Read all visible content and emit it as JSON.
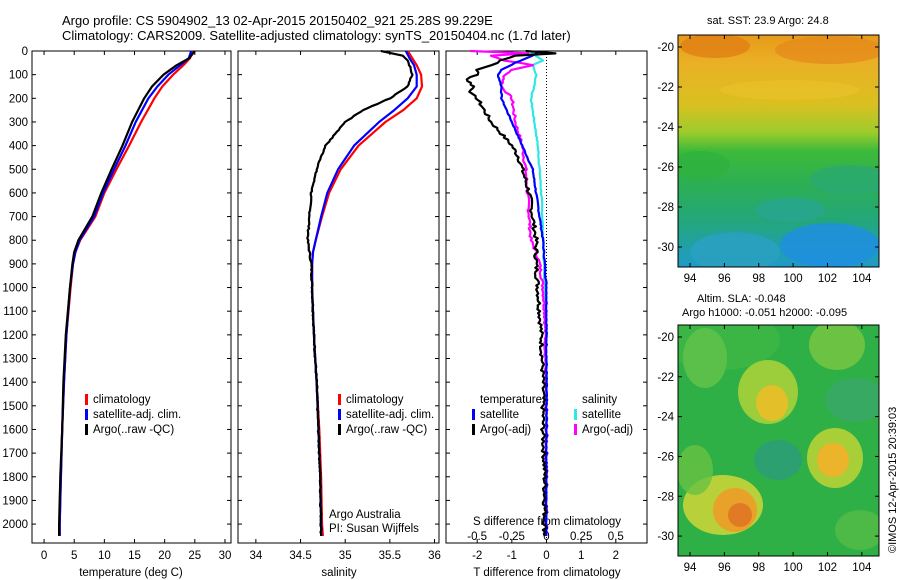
{
  "header": {
    "title_line1": "Argo profile: CS 5904902_13 02-Apr-2015 20150402_921 25.28S 99.229E",
    "title_line2": "Climatology: CARS2009. Satellite-adjusted climatology: synTS_20150404.nc (1.7d later)"
  },
  "colors": {
    "climatology": "#ff0000",
    "satellite": "#0000ff",
    "argo": "#000000",
    "sal_satellite": "#33e6e6",
    "sal_argo": "#ff00ff"
  },
  "chart_data": [
    {
      "type": "line",
      "id": "temperature",
      "xlabel": "temperature (deg C)",
      "ylabel": "",
      "xlim": [
        -2,
        31
      ],
      "ylim": [
        2080,
        0
      ],
      "xticks": [
        0,
        5,
        10,
        15,
        20,
        25,
        30
      ],
      "yticks": [
        0,
        100,
        200,
        300,
        400,
        500,
        600,
        700,
        800,
        900,
        1000,
        1100,
        1200,
        1300,
        1400,
        1500,
        1600,
        1700,
        1800,
        1900,
        2000
      ],
      "legend": [
        "climatology",
        "satellite-adj. clim.",
        "Argo(..raw -QC)"
      ],
      "series": [
        {
          "name": "climatology",
          "depth": [
            0,
            30,
            60,
            100,
            150,
            200,
            300,
            400,
            500,
            600,
            700,
            800,
            850,
            900,
            1000,
            1200,
            1400,
            1600,
            1800,
            2000,
            2050
          ],
          "values": [
            24.6,
            24.2,
            23.1,
            21.4,
            19.6,
            18.3,
            16.1,
            14.1,
            12.0,
            10.0,
            8.5,
            6.0,
            5.2,
            4.8,
            4.4,
            3.7,
            3.3,
            3.0,
            2.8,
            2.6,
            2.6
          ]
        },
        {
          "name": "satellite-adj. clim.",
          "depth": [
            0,
            30,
            60,
            100,
            150,
            200,
            300,
            400,
            500,
            600,
            700,
            800,
            850,
            900,
            1000,
            1200,
            1400,
            1600,
            1800,
            2000,
            2050
          ],
          "values": [
            24.4,
            24.0,
            22.6,
            20.6,
            18.8,
            17.3,
            15.2,
            13.5,
            11.6,
            9.8,
            8.3,
            5.9,
            5.2,
            4.8,
            4.3,
            3.7,
            3.3,
            3.0,
            2.8,
            2.6,
            2.6
          ]
        },
        {
          "name": "Argo(..raw -QC)",
          "depth": [
            0,
            30,
            60,
            100,
            150,
            200,
            300,
            400,
            500,
            600,
            700,
            800,
            850,
            900,
            1000,
            1200,
            1400,
            1600,
            1800,
            2000,
            2050
          ],
          "values": [
            25.0,
            24.1,
            22.0,
            19.8,
            17.9,
            16.6,
            14.6,
            13.0,
            11.2,
            9.5,
            8.0,
            5.7,
            5.0,
            4.7,
            4.3,
            3.6,
            3.2,
            3.0,
            2.7,
            2.5,
            2.5
          ]
        }
      ]
    },
    {
      "type": "line",
      "id": "salinity",
      "xlabel": "salinity",
      "ylabel": "",
      "xlim": [
        33.8,
        36.05
      ],
      "ylim": [
        2080,
        0
      ],
      "xticks": [
        34,
        34.5,
        35,
        35.5,
        36
      ],
      "legend": [
        "climatology",
        "satellite-adj. clim.",
        "Argo(..raw -QC)"
      ],
      "annotation": [
        "Argo Australia",
        "PI: Susan Wijffels"
      ],
      "series": [
        {
          "name": "climatology",
          "depth": [
            0,
            30,
            60,
            100,
            150,
            200,
            250,
            300,
            400,
            500,
            600,
            700,
            800,
            850,
            900,
            1000,
            1200,
            1400,
            1600,
            1800,
            2000,
            2050
          ],
          "values": [
            35.7,
            35.75,
            35.8,
            35.85,
            35.86,
            35.8,
            35.65,
            35.45,
            35.15,
            34.95,
            34.82,
            34.74,
            34.67,
            34.64,
            34.63,
            34.63,
            34.65,
            34.68,
            34.71,
            34.73,
            34.74,
            34.75
          ]
        },
        {
          "name": "satellite-adj. clim.",
          "depth": [
            0,
            30,
            60,
            100,
            150,
            200,
            250,
            300,
            400,
            500,
            600,
            700,
            800,
            850,
            900,
            1000,
            1200,
            1400,
            1600,
            1800,
            2000,
            2050
          ],
          "values": [
            35.68,
            35.72,
            35.77,
            35.8,
            35.8,
            35.7,
            35.55,
            35.38,
            35.1,
            34.92,
            34.8,
            34.73,
            34.67,
            34.64,
            34.63,
            34.63,
            34.65,
            34.68,
            34.7,
            34.72,
            34.73,
            34.73
          ]
        },
        {
          "name": "Argo(..raw -QC)",
          "depth": [
            0,
            20,
            40,
            60,
            100,
            150,
            200,
            250,
            300,
            400,
            500,
            600,
            700,
            800,
            850,
            900,
            1000,
            1200,
            1400,
            1600,
            1800,
            2000,
            2050
          ],
          "values": [
            35.4,
            35.65,
            35.7,
            35.72,
            35.75,
            35.7,
            35.5,
            35.2,
            35.0,
            34.78,
            34.68,
            34.62,
            34.6,
            34.58,
            34.6,
            34.62,
            34.63,
            34.65,
            34.68,
            34.7,
            34.72,
            34.73,
            34.73
          ]
        }
      ]
    },
    {
      "type": "line",
      "id": "difference",
      "xlabel": "T difference from climatology",
      "xlabel_top": "S difference from climatology",
      "xlim": [
        -2.9,
        2.9
      ],
      "ylim": [
        2080,
        0
      ],
      "xticks": [
        -2,
        -1,
        0,
        1,
        2
      ],
      "xticks_top": [
        "-0.5",
        "-0.25",
        "0",
        "0.25",
        "0.5"
      ],
      "legend_temperature": {
        "title": "temperature",
        "items": [
          "satellite",
          "Argo(-adj)"
        ]
      },
      "legend_salinity": {
        "title": "salinity",
        "items": [
          "satellite",
          "Argo(-adj)"
        ]
      },
      "series": [
        {
          "name": "temperature satellite",
          "depth": [
            0,
            20,
            50,
            80,
            100,
            150,
            200,
            300,
            400,
            500,
            600,
            700,
            800,
            900,
            1000,
            1200,
            1400,
            1600,
            1800,
            2000,
            2050
          ],
          "values": [
            -0.2,
            -0.4,
            -0.9,
            -1.3,
            -1.4,
            -1.3,
            -1.3,
            -1.0,
            -0.7,
            -0.4,
            -0.3,
            -0.2,
            -0.1,
            -0.05,
            0,
            0,
            0,
            0,
            0,
            0,
            0
          ]
        },
        {
          "name": "temperature Argo(-adj)",
          "depth": [
            0,
            10,
            20,
            40,
            60,
            80,
            100,
            120,
            150,
            180,
            200,
            250,
            300,
            350,
            400,
            450,
            500,
            600,
            700,
            800,
            900,
            1000,
            1100,
            1200,
            1400,
            1600,
            1800,
            2000,
            2050
          ],
          "values": [
            -0.6,
            0.3,
            -0.9,
            -1.3,
            -1.6,
            -2.0,
            -2.0,
            -2.3,
            -2.1,
            -2.2,
            -2.0,
            -1.8,
            -1.6,
            -1.3,
            -1.0,
            -0.8,
            -0.7,
            -0.5,
            -0.4,
            -0.3,
            -0.3,
            -0.25,
            -0.2,
            -0.15,
            -0.1,
            -0.1,
            -0.05,
            -0.05,
            -0.05
          ]
        },
        {
          "name": "salinity satellite",
          "depth": [
            0,
            20,
            40,
            60,
            100,
            150,
            200,
            300,
            400,
            500,
            600,
            700,
            800,
            900,
            1000,
            1200,
            1400,
            1600,
            1800,
            2000,
            2050
          ],
          "values": [
            -0.5,
            -0.3,
            -0.1,
            -0.4,
            -0.3,
            -0.35,
            -0.45,
            -0.35,
            -0.25,
            -0.2,
            -0.15,
            -0.12,
            -0.1,
            -0.07,
            -0.05,
            -0.03,
            -0.02,
            -0.01,
            0,
            0,
            0
          ]
        },
        {
          "name": "salinity Argo(-adj)",
          "depth": [
            0,
            10,
            20,
            40,
            60,
            80,
            100,
            150,
            200,
            300,
            400,
            500,
            600,
            700,
            800,
            850,
            900,
            1000,
            1100,
            1200,
            1400,
            1600,
            1800,
            2000,
            2050
          ],
          "values": [
            -2.2,
            -0.5,
            -1.6,
            -1.2,
            -0.4,
            -1.0,
            -1.2,
            -1.3,
            -1.0,
            -0.9,
            -0.7,
            -0.6,
            -0.55,
            -0.5,
            -0.45,
            -0.3,
            -0.2,
            -0.1,
            -0.05,
            -0.03,
            -0.02,
            0,
            0,
            0,
            0
          ]
        }
      ]
    },
    {
      "type": "heatmap",
      "id": "sst_map",
      "title": "sat. SST: 23.9  Argo: 24.8",
      "xticks": [
        94,
        96,
        98,
        100,
        102,
        104
      ],
      "yticks": [
        -20,
        -22,
        -24,
        -26,
        -28,
        -30
      ],
      "xlim": [
        93.3,
        105
      ],
      "ylim": [
        -31,
        -19.4
      ]
    },
    {
      "type": "heatmap",
      "id": "sla_map",
      "title": "Altim. SLA: -0.048",
      "subtitle": "Argo h1000: -0.051 h2000: -0.095",
      "xticks": [
        94,
        96,
        98,
        100,
        102,
        104
      ],
      "yticks": [
        -20,
        -22,
        -24,
        -26,
        -28,
        -30
      ],
      "xlim": [
        93.3,
        105
      ],
      "ylim": [
        -31,
        -19.4
      ]
    }
  ],
  "footer": {
    "timestamp": "©IMOS 12-Apr-2015 20:39:03"
  }
}
